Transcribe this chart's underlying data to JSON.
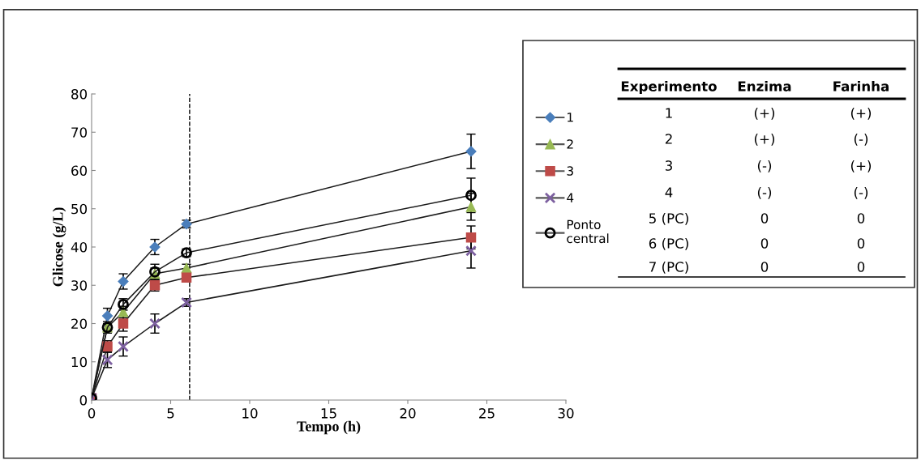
{
  "chart_data": {
    "type": "line",
    "xlabel": "Tempo (h)",
    "ylabel": "Glicose (g/L)",
    "x": [
      0,
      1,
      2,
      4,
      6,
      24
    ],
    "series": [
      {
        "name": "1",
        "color": "#4a7ebb",
        "marker": "diamond",
        "values": [
          0.5,
          22,
          31,
          40,
          46,
          65
        ],
        "errors": [
          null,
          2,
          2,
          2,
          1,
          4.5
        ]
      },
      {
        "name": "2",
        "color": "#98b954",
        "marker": "triangle",
        "values": [
          0.5,
          19,
          23,
          33,
          34.5,
          50.5
        ],
        "errors": [
          null,
          null,
          1.5,
          1.5,
          1,
          3.5
        ]
      },
      {
        "name": "3",
        "color": "#be4b48",
        "marker": "square",
        "values": [
          0.5,
          14,
          20,
          30,
          32,
          42.5
        ],
        "errors": [
          null,
          1.5,
          2,
          1.5,
          null,
          3
        ]
      },
      {
        "name": "4",
        "color": "#7d60a0",
        "marker": "cross",
        "values": [
          0.5,
          10.5,
          14,
          20,
          25.5,
          39
        ],
        "errors": [
          null,
          2,
          2.5,
          2.5,
          1,
          4.5
        ]
      },
      {
        "name": "Ponto\ncentral",
        "color": "#000000",
        "marker": "circle",
        "values": [
          0.5,
          19,
          25,
          33.5,
          38.5,
          53.5
        ],
        "errors": [
          null,
          1.5,
          1.5,
          2,
          1,
          4.5
        ]
      }
    ],
    "xlim": [
      0,
      30
    ],
    "xticks": [
      0,
      5,
      10,
      15,
      20,
      25,
      30
    ],
    "ylim": [
      0,
      80
    ],
    "yticks": [
      0,
      10,
      20,
      30,
      40,
      50,
      60,
      70,
      80
    ],
    "ref_lines": [
      {
        "axis": "x",
        "value": 6.2,
        "line_style": "dashed",
        "color": "#000000"
      }
    ],
    "grid": false,
    "legend": "right",
    "annotations": [
      "Experimento",
      "Enzima",
      "Farinha",
      "1",
      "(+)",
      "(+)",
      "2",
      "(+)",
      "(-)",
      "3",
      "(-)",
      "(+)",
      "4",
      "(-)",
      "(-)",
      "5 (PC)",
      "0",
      "0",
      "6 (PC)",
      "0",
      "0",
      "7 (PC)",
      "0",
      "0"
    ]
  }
}
